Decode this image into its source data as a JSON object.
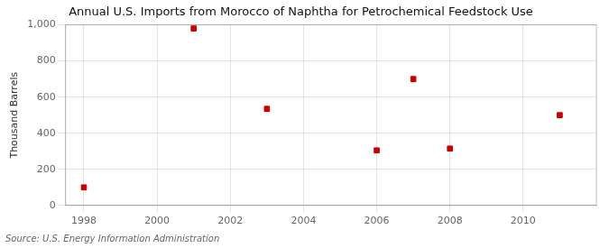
{
  "chart_data": {
    "type": "scatter",
    "title": "Annual U.S. Imports from Morocco of Naphtha for Petrochemical Feedstock Use",
    "ylabel": "Thousand Barrels",
    "annotations": [
      "Source: U.S. Energy Information Administration"
    ],
    "x": [
      1998,
      2001,
      2003,
      2006,
      2007,
      2008,
      2011
    ],
    "values": [
      100,
      980,
      535,
      305,
      700,
      315,
      500
    ],
    "color": "#cc0000",
    "marker": "square",
    "xlim": [
      1997.5,
      2012
    ],
    "xticks": [
      1998,
      2000,
      2002,
      2004,
      2006,
      2008,
      2010
    ],
    "ylim": [
      0,
      1000
    ],
    "yticks": [
      0,
      200,
      400,
      600,
      800,
      {
        "value": 1000,
        "label": "1,000"
      }
    ],
    "grid": true
  }
}
